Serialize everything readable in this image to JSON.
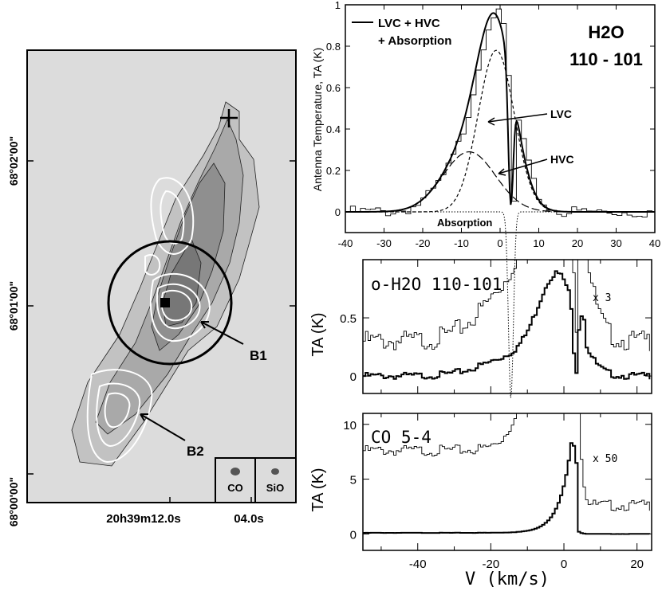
{
  "chart_data": [
    {
      "type": "contour-map",
      "ylabels": [
        "68°02'00\"",
        "68°01'00\"",
        "68°00'00\""
      ],
      "xlabels": [
        "20h39m12.0s",
        "04.0s"
      ],
      "labels": {
        "b1": "B1",
        "b2": "B2"
      },
      "beams": [
        "CO",
        "SiO"
      ]
    },
    {
      "type": "line",
      "ylabel": "Antenna Temperature, TA (K)",
      "legend": {
        "line1": "LVC + HVC",
        "line2": "+ Absorption"
      },
      "title_line1": "H2O",
      "title_line2": "110 - 101",
      "annotations": {
        "lvc": "LVC",
        "hvc": "HVC",
        "absorption": "Absorption"
      },
      "xlim": [
        -40,
        40
      ],
      "ylim": [
        -0.1,
        1.0
      ],
      "xticks": [
        -40,
        -30,
        -20,
        -10,
        0,
        10,
        20,
        30,
        40
      ],
      "yticks": [
        0,
        0.2,
        0.4,
        0.6,
        0.8,
        1.0
      ],
      "components": [
        {
          "name": "LVC",
          "amplitude": 0.78,
          "center": -1,
          "fwhm": 11
        },
        {
          "name": "HVC",
          "amplitude": 0.29,
          "center": -8,
          "fwhm": 16
        },
        {
          "name": "Absorption",
          "depth": 0.9,
          "center": 2.8,
          "fwhm": 1.5
        }
      ]
    },
    {
      "type": "line",
      "label": "o-H2O 110-101",
      "scale_note": "x 3",
      "ylabel": "TA (K)",
      "ylim": [
        -0.15,
        1.0
      ],
      "yticks": [
        0,
        0.5
      ],
      "xlim": [
        -55,
        24
      ]
    },
    {
      "type": "line",
      "label": "CO 5-4",
      "scale_note": "x 50",
      "ylabel": "TA (K)",
      "xlabel": "V (km/s)",
      "ylim": [
        -1.5,
        11
      ],
      "yticks": [
        0,
        5,
        10
      ],
      "xlim": [
        -55,
        24
      ],
      "xticks": [
        -40,
        -20,
        0,
        20
      ]
    }
  ]
}
